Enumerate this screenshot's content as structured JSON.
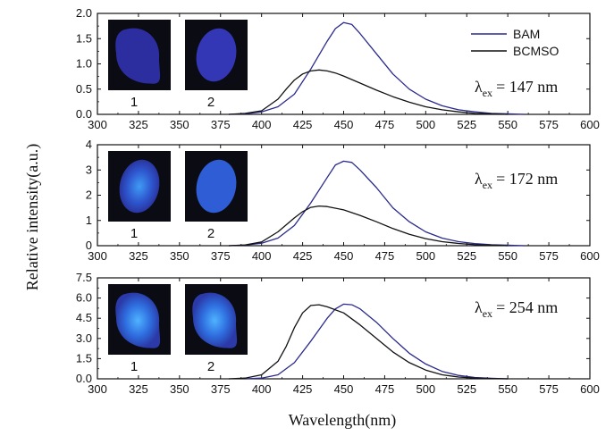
{
  "chart_data": {
    "type": "line",
    "y_axis_title": "Relative intensity(a.u.)",
    "x_axis_title": "Wavelength(nm)",
    "legend": [
      {
        "name": "BAM",
        "color": "#2a2a8c"
      },
      {
        "name": "BCMSO",
        "color": "#111111"
      }
    ],
    "xlim": [
      300,
      600
    ],
    "xticks": [
      300,
      325,
      350,
      375,
      400,
      425,
      450,
      475,
      500,
      525,
      550,
      575,
      600
    ],
    "panels": [
      {
        "excitation": "147 nm",
        "lambda_symbol": "λ",
        "lambda_sub": "ex",
        "lambda_eq": "= 147 nm",
        "ylim": [
          0,
          2.0
        ],
        "yticks": [
          "0.0",
          "0.5",
          "1.0",
          "1.5",
          "2.0"
        ],
        "photo_labels": [
          "1",
          "2"
        ],
        "series": [
          {
            "name": "BAM",
            "color": "#2a2a8c",
            "x": [
              380,
              390,
              400,
              410,
              420,
              430,
              440,
              445,
              450,
              455,
              460,
              470,
              480,
              490,
              500,
              510,
              520,
              530,
              540,
              550,
              560
            ],
            "y": [
              0.0,
              0.01,
              0.05,
              0.15,
              0.4,
              0.9,
              1.45,
              1.7,
              1.82,
              1.78,
              1.6,
              1.2,
              0.8,
              0.5,
              0.3,
              0.17,
              0.09,
              0.05,
              0.02,
              0.01,
              0.0
            ]
          },
          {
            "name": "BCMSO",
            "color": "#111111",
            "x": [
              380,
              390,
              400,
              410,
              415,
              420,
              425,
              430,
              435,
              440,
              445,
              450,
              460,
              470,
              480,
              490,
              500,
              510,
              520,
              530,
              540,
              550
            ],
            "y": [
              0.0,
              0.02,
              0.07,
              0.3,
              0.5,
              0.68,
              0.8,
              0.86,
              0.88,
              0.86,
              0.82,
              0.76,
              0.62,
              0.48,
              0.35,
              0.24,
              0.15,
              0.09,
              0.05,
              0.02,
              0.01,
              0.0
            ]
          }
        ]
      },
      {
        "excitation": "172 nm",
        "lambda_symbol": "λ",
        "lambda_sub": "ex",
        "lambda_eq": "= 172 nm",
        "ylim": [
          0,
          4
        ],
        "yticks": [
          "0",
          "1",
          "2",
          "3",
          "4"
        ],
        "photo_labels": [
          "1",
          "2"
        ],
        "series": [
          {
            "name": "BAM",
            "color": "#2a2a8c",
            "x": [
              380,
              390,
              400,
              410,
              420,
              430,
              440,
              445,
              450,
              455,
              460,
              470,
              480,
              490,
              500,
              510,
              520,
              530,
              540,
              550,
              560
            ],
            "y": [
              0.0,
              0.02,
              0.1,
              0.3,
              0.8,
              1.7,
              2.7,
              3.2,
              3.35,
              3.3,
              3.0,
              2.3,
              1.5,
              0.95,
              0.55,
              0.3,
              0.16,
              0.08,
              0.04,
              0.02,
              0.0
            ]
          },
          {
            "name": "BCMSO",
            "color": "#111111",
            "x": [
              380,
              390,
              400,
              410,
              420,
              425,
              430,
              435,
              440,
              450,
              460,
              470,
              480,
              490,
              500,
              510,
              520,
              530,
              540,
              550
            ],
            "y": [
              0.0,
              0.03,
              0.15,
              0.55,
              1.1,
              1.35,
              1.52,
              1.57,
              1.55,
              1.42,
              1.2,
              0.95,
              0.68,
              0.45,
              0.28,
              0.16,
              0.09,
              0.04,
              0.02,
              0.0
            ]
          }
        ]
      },
      {
        "excitation": "254 nm",
        "lambda_symbol": "λ",
        "lambda_sub": "ex",
        "lambda_eq": "= 254 nm",
        "ylim": [
          0,
          7.5
        ],
        "yticks": [
          "0.0",
          "1.5",
          "3.0",
          "4.5",
          "6.0",
          "7.5"
        ],
        "photo_labels": [
          "1",
          "2"
        ],
        "series": [
          {
            "name": "BAM",
            "color": "#2a2a8c",
            "x": [
              390,
              400,
              410,
              420,
              430,
              440,
              445,
              450,
              455,
              460,
              470,
              480,
              490,
              500,
              510,
              520,
              530,
              540,
              550
            ],
            "y": [
              0.0,
              0.05,
              0.3,
              1.2,
              2.8,
              4.5,
              5.2,
              5.55,
              5.5,
              5.2,
              4.2,
              3.0,
              1.9,
              1.1,
              0.55,
              0.25,
              0.1,
              0.04,
              0.0
            ]
          },
          {
            "name": "BCMSO",
            "color": "#111111",
            "x": [
              380,
              390,
              400,
              410,
              415,
              420,
              425,
              430,
              435,
              440,
              450,
              460,
              470,
              480,
              490,
              500,
              510,
              520,
              530,
              540,
              550
            ],
            "y": [
              0.0,
              0.05,
              0.3,
              1.3,
              2.4,
              3.8,
              4.9,
              5.45,
              5.5,
              5.35,
              4.9,
              4.0,
              3.0,
              2.0,
              1.2,
              0.65,
              0.3,
              0.13,
              0.05,
              0.02,
              0.0
            ]
          }
        ]
      }
    ]
  }
}
